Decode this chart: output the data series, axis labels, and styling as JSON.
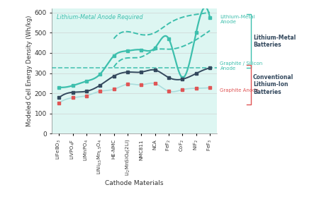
{
  "categories": [
    "LiFeBO$_3$",
    "LiVPO$_4$F",
    "LiMnPO$_4$",
    "LiNi$_{0.5}$Mn$_{1.5}$O$_4$",
    "HE-NMC",
    "Li$_2$MnSiO$_4$(2Li)",
    "NMC811",
    "NCA",
    "FeF$_2$",
    "CoF$_2$",
    "NiF$_2$",
    "FeF$_3$"
  ],
  "lm_y": [
    230,
    238,
    260,
    295,
    385,
    410,
    415,
    425,
    470,
    278,
    500,
    575
  ],
  "gs_y": [
    178,
    205,
    210,
    240,
    285,
    305,
    305,
    315,
    278,
    270,
    298,
    325
  ],
  "ga_y": [
    152,
    178,
    188,
    210,
    220,
    245,
    242,
    248,
    210,
    218,
    225,
    228
  ],
  "dashed_upper_x": [
    4,
    5,
    6,
    7,
    8,
    10,
    11
  ],
  "dashed_upper_y": [
    470,
    505,
    490,
    500,
    545,
    590,
    600
  ],
  "dashed_lower_x": [
    4,
    5,
    6,
    7,
    8,
    10,
    11
  ],
  "dashed_lower_y": [
    330,
    375,
    380,
    415,
    418,
    465,
    510
  ],
  "graphite_silicon_hline": 325,
  "teal": "#3dbfad",
  "teal_dark": "#2a9d8f",
  "navy": "#34495e",
  "red": "#e05555",
  "bg_color": "#d8f5f0",
  "ylabel": "Modeled Cell Energy Density (Wh/kg)",
  "xlabel": "Cathode Materials",
  "ylim": [
    0,
    620
  ],
  "yticks": [
    0,
    100,
    200,
    300,
    400,
    500,
    600
  ],
  "annotation_lm_required": "Lithium-Metal Anode Required",
  "annotation_lm_anode": "Lithium-Metal\nAnode",
  "annotation_lm_batteries": "Lithium-Metal\nBatteries",
  "annotation_gs_anode": "Graphite / Silicon\nAnode",
  "annotation_ga": "Graphite Anode",
  "annotation_conv": "Conventional\nLithium-Ion\nBatteries"
}
